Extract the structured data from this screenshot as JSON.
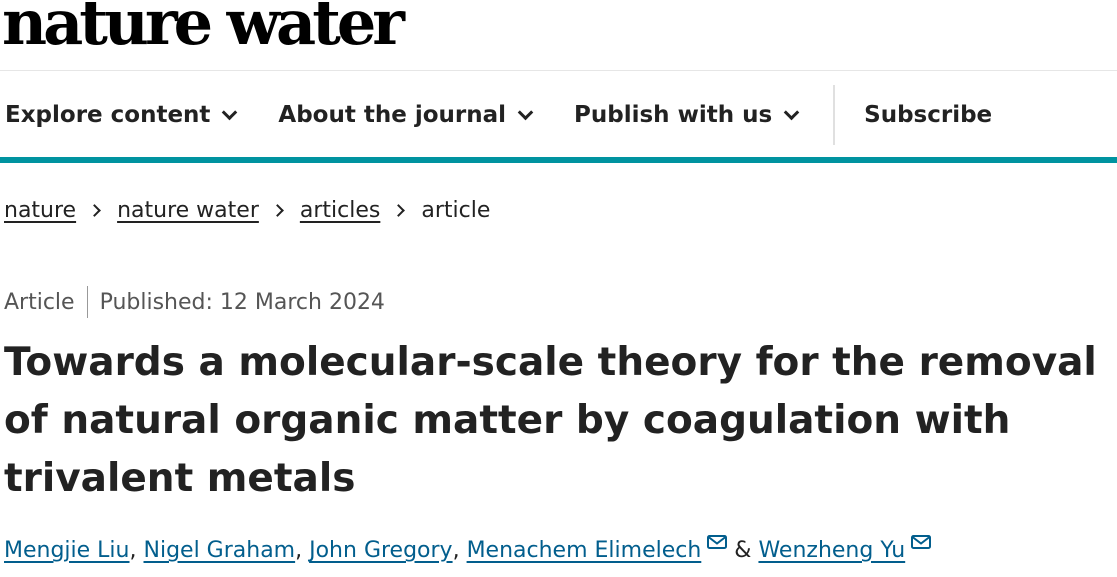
{
  "header": {
    "logo": "nature water"
  },
  "nav": {
    "items": [
      {
        "label": "Explore content"
      },
      {
        "label": "About the journal"
      },
      {
        "label": "Publish with us"
      }
    ],
    "subscribe": "Subscribe"
  },
  "breadcrumb": [
    "nature",
    "nature water",
    "articles",
    "article"
  ],
  "article": {
    "type": "Article",
    "published": "Published: 12 March 2024",
    "title": "Towards a molecular-scale theory for the removal of natural organic matter by coagulation with trivalent metals",
    "authors": [
      "Mengjie Liu",
      "Nigel Graham",
      "John Gregory",
      "Menachem Elimelech",
      "Wenzheng Yu"
    ],
    "author_sep": ",",
    "author_amp": "&"
  },
  "colors": {
    "accent": "#0093a0",
    "link": "#025e8d"
  }
}
